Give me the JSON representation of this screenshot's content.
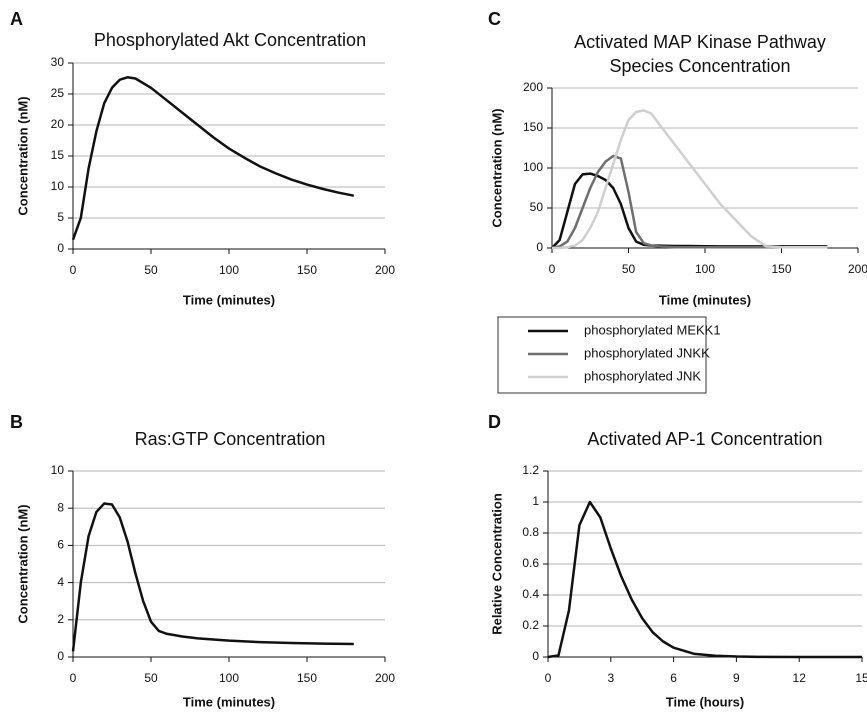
{
  "chart_data": [
    {
      "type": "line",
      "panel_label": "A",
      "title": [
        "Phosphorylated Akt Concentration"
      ],
      "x_label": "Time (minutes)",
      "y_label": "Concentration (nM)",
      "x": [
        0,
        5,
        10,
        15,
        20,
        25,
        30,
        35,
        40,
        50,
        60,
        70,
        80,
        90,
        100,
        110,
        120,
        130,
        140,
        150,
        160,
        170,
        180
      ],
      "values": [
        1.5,
        5,
        13,
        19,
        23.5,
        26,
        27.3,
        27.7,
        27.5,
        26,
        24,
        22,
        20,
        18,
        16.2,
        14.7,
        13.3,
        12.2,
        11.2,
        10.4,
        9.7,
        9.1,
        8.6
      ],
      "color": "#111111",
      "xlim": [
        0,
        200
      ],
      "xticks": [
        0,
        50,
        100,
        150,
        200
      ],
      "ylim": [
        0,
        30
      ],
      "yticks": [
        0,
        5,
        10,
        15,
        20,
        25,
        30
      ],
      "grid": true
    },
    {
      "type": "line",
      "panel_label": "B",
      "title": [
        "Ras:GTP Concentration"
      ],
      "x_label": "Time (minutes)",
      "y_label": "Concentration (nM)",
      "x": [
        0,
        5,
        10,
        15,
        20,
        25,
        30,
        35,
        40,
        45,
        50,
        55,
        60,
        70,
        80,
        100,
        120,
        140,
        160,
        180
      ],
      "values": [
        0.3,
        4,
        6.5,
        7.8,
        8.25,
        8.2,
        7.5,
        6.2,
        4.5,
        3,
        1.9,
        1.4,
        1.25,
        1.1,
        1.0,
        0.88,
        0.8,
        0.75,
        0.72,
        0.7
      ],
      "color": "#111111",
      "xlim": [
        0,
        200
      ],
      "xticks": [
        0,
        50,
        100,
        150,
        200
      ],
      "ylim": [
        0,
        10
      ],
      "yticks": [
        0,
        2,
        4,
        6,
        8,
        10
      ],
      "grid": true
    },
    {
      "type": "line",
      "panel_label": "C",
      "title": [
        "Activated MAP Kinase Pathway",
        "Species Concentration"
      ],
      "x_label": "Time (minutes)",
      "y_label": "Concentration (nM)",
      "x": [
        0,
        5,
        10,
        15,
        20,
        25,
        30,
        35,
        40,
        45,
        50,
        55,
        60,
        65,
        70,
        80,
        90,
        100,
        110,
        120,
        130,
        140,
        150,
        160,
        170,
        180
      ],
      "series": [
        {
          "name": "phosphorylated MEKK1",
          "color": "#111111",
          "values": [
            0,
            10,
            45,
            80,
            92,
            93,
            90,
            85,
            75,
            55,
            25,
            8,
            4,
            3,
            3,
            2.5,
            2.5,
            2.2,
            2,
            2,
            2,
            2,
            2,
            2,
            2,
            2
          ]
        },
        {
          "name": "phosphorylated JNKK",
          "color": "#6e6e6e",
          "values": [
            0,
            2,
            8,
            25,
            50,
            75,
            95,
            108,
            115,
            112,
            70,
            20,
            6,
            3,
            2,
            1,
            1,
            1,
            1,
            1,
            1,
            1,
            1,
            1,
            1,
            1
          ]
        },
        {
          "name": "phosphorylated JNK",
          "color": "#cfcfcf",
          "values": [
            0,
            0,
            1,
            3,
            10,
            25,
            45,
            75,
            105,
            135,
            160,
            170,
            172,
            168,
            155,
            130,
            105,
            80,
            55,
            35,
            15,
            2,
            1,
            1,
            1,
            1
          ]
        }
      ],
      "legend": "bottom",
      "xlim": [
        0,
        200
      ],
      "xticks": [
        0,
        50,
        100,
        150,
        200
      ],
      "ylim": [
        0,
        200
      ],
      "yticks": [
        0,
        50,
        100,
        150,
        200
      ],
      "grid": true
    },
    {
      "type": "line",
      "panel_label": "D",
      "title": [
        "Activated AP-1 Concentration"
      ],
      "x_label": "Time (hours)",
      "y_label": "Relative Concentration",
      "x": [
        0,
        0.5,
        1,
        1.5,
        2,
        2.5,
        3,
        3.5,
        4,
        4.5,
        5,
        5.5,
        6,
        7,
        8,
        9,
        10,
        12,
        15
      ],
      "values": [
        0,
        0.01,
        0.3,
        0.85,
        1.0,
        0.9,
        0.7,
        0.52,
        0.37,
        0.25,
        0.16,
        0.1,
        0.06,
        0.02,
        0.008,
        0.003,
        0.001,
        0,
        0
      ],
      "color": "#111111",
      "xlim": [
        0,
        15
      ],
      "xticks": [
        0,
        3,
        6,
        9,
        12,
        15
      ],
      "ylim": [
        0,
        1.2
      ],
      "yticks": [
        0,
        0.2,
        0.4,
        0.6,
        0.8,
        1,
        1.2
      ],
      "grid": true
    }
  ]
}
